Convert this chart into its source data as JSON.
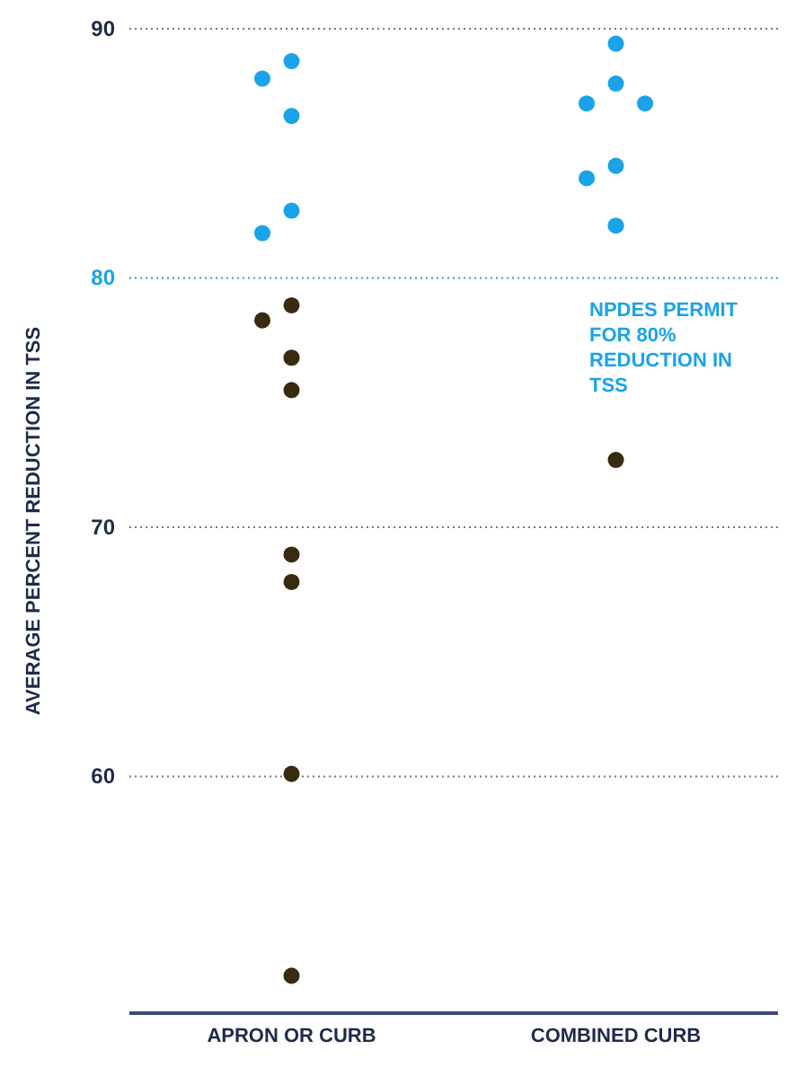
{
  "chart_data": {
    "type": "scatter",
    "categories": [
      "APRON OR CURB",
      "COMBINED CURB"
    ],
    "ylabel": "AVERAGE PERCENT REDUCTION IN TSS",
    "ylim": [
      50.5,
      90
    ],
    "yticks": [
      60,
      70,
      80,
      90
    ],
    "grid": "y",
    "marker": "circle",
    "series": [
      {
        "color": "#1aa3e8",
        "x": [
          "APRON OR CURB",
          "APRON OR CURB",
          "APRON OR CURB",
          "APRON OR CURB",
          "APRON OR CURB",
          "COMBINED CURB",
          "COMBINED CURB",
          "COMBINED CURB",
          "COMBINED CURB",
          "COMBINED CURB",
          "COMBINED CURB",
          "COMBINED CURB"
        ],
        "values": [
          88.7,
          88.0,
          86.5,
          82.7,
          81.8,
          89.4,
          87.8,
          87.0,
          87.0,
          84.5,
          84.0,
          82.1
        ]
      },
      {
        "color": "#3a2a12",
        "x": [
          "APRON OR CURB",
          "APRON OR CURB",
          "APRON OR CURB",
          "APRON OR CURB",
          "APRON OR CURB",
          "APRON OR CURB",
          "APRON OR CURB",
          "APRON OR CURB",
          "COMBINED CURB"
        ],
        "values": [
          78.9,
          78.3,
          76.8,
          75.5,
          68.9,
          67.8,
          60.1,
          52.0,
          72.7
        ]
      }
    ],
    "ref_lines": [
      {
        "axis": "y",
        "value": 80,
        "label": "NPDES PERMIT FOR 80% REDUCTION IN TSS",
        "color": "#1aa3e8",
        "line_style": "dotted"
      }
    ]
  }
}
